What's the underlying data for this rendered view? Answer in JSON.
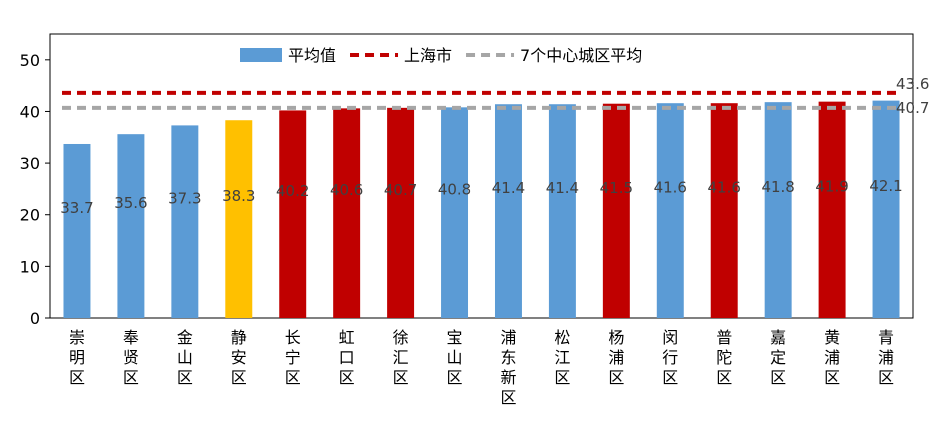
{
  "chart_data": {
    "type": "bar",
    "title": "",
    "xlabel": "",
    "ylabel": "",
    "ylim": [
      0,
      55
    ],
    "yticks": [
      0,
      10,
      20,
      30,
      40,
      50
    ],
    "grid": false,
    "legend_position": "top",
    "categories": [
      "崇明区",
      "奉贤区",
      "金山区",
      "静安区",
      "长宁区",
      "虹口区",
      "徐汇区",
      "宝山区",
      "浦东新区",
      "松江区",
      "杨浦区",
      "闵行区",
      "普陀区",
      "嘉定区",
      "黄浦区",
      "青浦区"
    ],
    "values": [
      33.7,
      35.6,
      37.3,
      38.3,
      40.2,
      40.6,
      40.7,
      40.8,
      41.4,
      41.4,
      41.5,
      41.6,
      41.6,
      41.8,
      41.9,
      42.1
    ],
    "value_labels": [
      "33.7",
      "35.6",
      "37.3",
      "38.3",
      "40.2",
      "40.6",
      "40.7",
      "40.8",
      "41.4",
      "41.4",
      "41.5",
      "41.6",
      "41.6",
      "41.8",
      "41.9",
      "42.1"
    ],
    "bar_colors": [
      "#5B9BD5",
      "#5B9BD5",
      "#5B9BD5",
      "#FFC000",
      "#C00000",
      "#C00000",
      "#C00000",
      "#5B9BD5",
      "#5B9BD5",
      "#5B9BD5",
      "#C00000",
      "#5B9BD5",
      "#C00000",
      "#5B9BD5",
      "#C00000",
      "#5B9BD5"
    ],
    "series": [
      {
        "name": "平均值",
        "type": "bar",
        "color": "#5B9BD5"
      },
      {
        "name": "上海市",
        "type": "reference-line",
        "value": 43.6,
        "label": "43.6",
        "color": "#C00000",
        "style": "dashed"
      },
      {
        "name": "7个中心城区平均",
        "type": "reference-line",
        "value": 40.7,
        "label": "40.7",
        "color": "#A6A6A6",
        "style": "dashed"
      }
    ]
  }
}
